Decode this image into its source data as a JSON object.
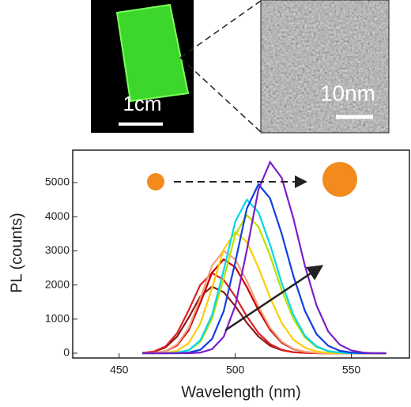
{
  "images": {
    "left_scale": "1cm",
    "right_scale": "10nm"
  },
  "chart_data": {
    "type": "line",
    "xlabel": "Wavelength (nm)",
    "ylabel": "PL (counts)",
    "x": [
      460,
      465,
      470,
      475,
      480,
      485,
      490,
      495,
      500,
      505,
      510,
      515,
      520,
      525,
      530,
      535,
      540,
      545,
      550,
      555,
      560,
      565
    ],
    "series": [
      {
        "color": "#8b1a1a",
        "values": [
          10,
          40,
          170,
          490,
          1050,
          1670,
          1950,
          1790,
          1380,
          890,
          490,
          220,
          90,
          30,
          10,
          0,
          0,
          0,
          0,
          0,
          0,
          0
        ]
      },
      {
        "color": "#e02020",
        "values": [
          10,
          50,
          200,
          590,
          1270,
          2010,
          2350,
          2150,
          1660,
          1080,
          590,
          270,
          100,
          30,
          10,
          0,
          0,
          0,
          0,
          0,
          0,
          0
        ]
      },
      {
        "color": "#cc0000",
        "values": [
          0,
          10,
          60,
          230,
          680,
          1480,
          2360,
          2750,
          2520,
          1940,
          1260,
          690,
          310,
          120,
          40,
          10,
          0,
          0,
          0,
          0,
          0,
          0
        ]
      },
      {
        "color": "#f4a080",
        "values": [
          0,
          10,
          60,
          260,
          750,
          1620,
          2570,
          3000,
          2750,
          2120,
          1370,
          750,
          340,
          130,
          40,
          10,
          0,
          0,
          0,
          0,
          0,
          0
        ]
      },
      {
        "color": "#ffcc00",
        "values": [
          0,
          0,
          10,
          70,
          300,
          880,
          1910,
          3040,
          3550,
          3260,
          2510,
          1630,
          890,
          400,
          160,
          50,
          10,
          0,
          0,
          0,
          0,
          0
        ]
      },
      {
        "color": "#b8e000",
        "values": [
          0,
          0,
          0,
          20,
          90,
          340,
          1010,
          2180,
          3470,
          4050,
          3710,
          2860,
          1850,
          1010,
          460,
          180,
          60,
          20,
          0,
          0,
          0,
          0
        ]
      },
      {
        "color": "#00d8e8",
        "values": [
          0,
          0,
          0,
          20,
          90,
          380,
          1120,
          2430,
          3860,
          4500,
          4130,
          3180,
          2060,
          1130,
          510,
          200,
          60,
          20,
          0,
          0,
          0,
          0
        ]
      },
      {
        "color": "#1040e0",
        "values": [
          0,
          0,
          0,
          0,
          20,
          100,
          420,
          1230,
          2670,
          4240,
          4950,
          4540,
          3500,
          2270,
          1240,
          560,
          220,
          70,
          20,
          0,
          0,
          0
        ]
      },
      {
        "color": "#7a1fc8",
        "values": [
          0,
          0,
          0,
          0,
          0,
          20,
          120,
          480,
          1390,
          3020,
          4800,
          5600,
          5140,
          3960,
          2560,
          1400,
          640,
          250,
          80,
          20,
          0,
          0
        ]
      }
    ],
    "xlim": [
      430,
      575
    ],
    "ylim": [
      -140,
      5950
    ],
    "xticks": [
      450,
      500,
      550
    ],
    "yticks": [
      0,
      1000,
      2000,
      3000,
      4000,
      5000
    ]
  }
}
